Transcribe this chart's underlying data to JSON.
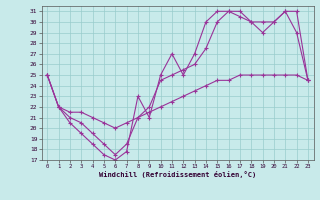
{
  "xlabel": "Windchill (Refroidissement éolien,°C)",
  "background_color": "#c8eaea",
  "grid_color": "#99cccc",
  "line_color": "#993399",
  "xlim": [
    -0.5,
    23.5
  ],
  "ylim": [
    17,
    31.5
  ],
  "xticks": [
    0,
    1,
    2,
    3,
    4,
    5,
    6,
    7,
    8,
    9,
    10,
    11,
    12,
    13,
    14,
    15,
    16,
    17,
    18,
    19,
    20,
    21,
    22,
    23
  ],
  "yticks": [
    17,
    18,
    19,
    20,
    21,
    22,
    23,
    24,
    25,
    26,
    27,
    28,
    29,
    30,
    31
  ],
  "line1_x": [
    0,
    1,
    2,
    3,
    4,
    5,
    6,
    7,
    8,
    9,
    10,
    11,
    12,
    13,
    14,
    15,
    16,
    17,
    18,
    19,
    20,
    21,
    22,
    23
  ],
  "line1_y": [
    25,
    22,
    20.5,
    19.5,
    18.5,
    17.5,
    17,
    17.8,
    23,
    21,
    25,
    27,
    25,
    27,
    30,
    31,
    31,
    30.5,
    30,
    29,
    30,
    31,
    29,
    24.5
  ],
  "line2_x": [
    0,
    1,
    2,
    3,
    4,
    5,
    6,
    7,
    8,
    9,
    10,
    11,
    12,
    13,
    14,
    15,
    16,
    17,
    18,
    19,
    20,
    21,
    22,
    23
  ],
  "line2_y": [
    25,
    22,
    21,
    20.5,
    19.5,
    18.5,
    17.5,
    18.5,
    21,
    22,
    24.5,
    25,
    25.5,
    26,
    27.5,
    30,
    31,
    31,
    30,
    30,
    30,
    31,
    31,
    24.5
  ],
  "line3_x": [
    0,
    1,
    2,
    3,
    4,
    5,
    6,
    7,
    8,
    9,
    10,
    11,
    12,
    13,
    14,
    15,
    16,
    17,
    18,
    19,
    20,
    21,
    22,
    23
  ],
  "line3_y": [
    25,
    22,
    21.5,
    21.5,
    21,
    20.5,
    20,
    20.5,
    21,
    21.5,
    22,
    22.5,
    23,
    23.5,
    24,
    24.5,
    24.5,
    25,
    25,
    25,
    25,
    25,
    25,
    24.5
  ]
}
